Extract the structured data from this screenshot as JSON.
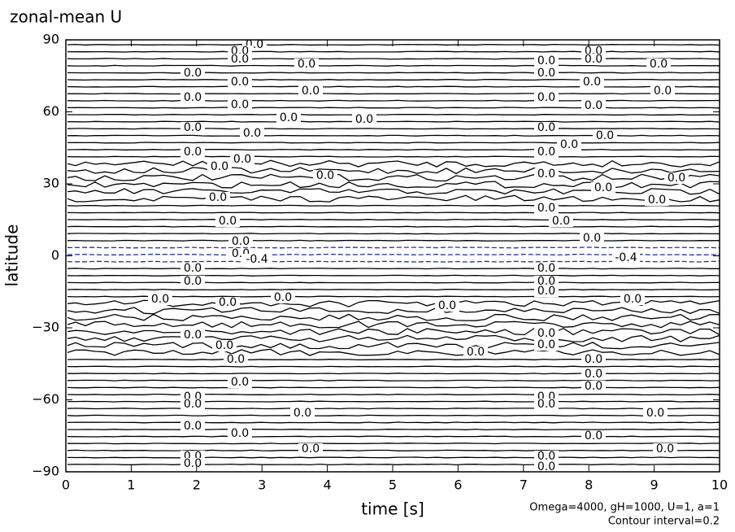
{
  "chart_data": {
    "type": "contour",
    "title": "zonal-mean U",
    "x_label": "time [s]",
    "y_label": "latitude",
    "xlim": [
      0,
      10
    ],
    "ylim": [
      -90,
      90
    ],
    "xticks": [
      0,
      1,
      2,
      3,
      4,
      5,
      6,
      7,
      8,
      9,
      10
    ],
    "yticks": [
      {
        "value": -90,
        "label": "−90"
      },
      {
        "value": -60,
        "label": "−60"
      },
      {
        "value": -30,
        "label": "−30"
      },
      0,
      30,
      60,
      90
    ],
    "contour_labels": [
      "0.0",
      "-0.4"
    ],
    "annotations": [
      "Omega=4000, gH=1000, U=1, a=1",
      "Contour interval=0.2"
    ]
  }
}
